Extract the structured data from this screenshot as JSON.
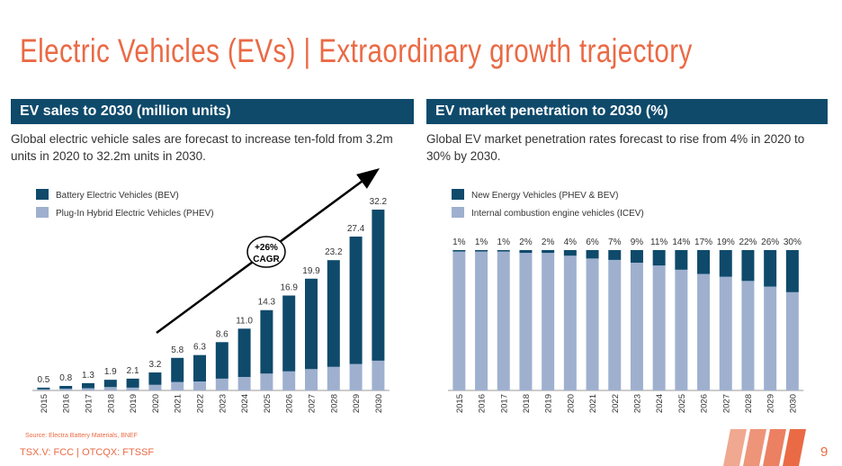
{
  "page": {
    "title": "Electric Vehicles (EVs) | Extraordinary growth trajectory",
    "source": "Source: Electra Battery Materials, BNEF",
    "ticker": "TSX.V: FCC | OTCQX: FTSSF",
    "page_number": "9"
  },
  "left_panel": {
    "header": "EV sales to 2030 (million units)",
    "description": "Global electric vehicle sales are forecast to increase ten-fold from 3.2m units in 2020 to 32.2m units in 2030.",
    "cagr_line1": "+26%",
    "cagr_line2": "CAGR"
  },
  "right_panel": {
    "header": "EV market penetration to 2030 (%)",
    "description": "Global EV market penetration rates forecast to rise from 4% in 2020 to 30% by 2030."
  },
  "colors": {
    "dark": "#0f4a6b",
    "light": "#9fb0cf",
    "accent": "#ea6a45"
  },
  "chart_data": [
    {
      "type": "bar",
      "stacked": true,
      "categories": [
        "2015",
        "2016",
        "2017",
        "2018",
        "2019",
        "2020",
        "2021",
        "2022",
        "2023",
        "2024",
        "2025",
        "2026",
        "2027",
        "2028",
        "2029",
        "2030"
      ],
      "series": [
        {
          "name": "Battery Electric Vehicles (BEV)",
          "values": [
            0.3,
            0.5,
            0.9,
            1.3,
            1.6,
            2.2,
            4.3,
            4.7,
            6.5,
            8.6,
            11.3,
            13.5,
            16.1,
            19.0,
            22.7,
            26.9
          ]
        },
        {
          "name": "Plug-In Hybrid Electric Vehicles (PHEV)",
          "values": [
            0.2,
            0.3,
            0.4,
            0.6,
            0.5,
            1.0,
            1.5,
            1.6,
            2.1,
            2.4,
            3.0,
            3.4,
            3.8,
            4.2,
            4.7,
            5.3
          ]
        }
      ],
      "totals": [
        "0.5",
        "0.8",
        "1.3",
        "1.9",
        "2.1",
        "3.2",
        "5.8",
        "6.3",
        "8.6",
        "11.0",
        "14.3",
        "16.9",
        "19.9",
        "23.2",
        "27.4",
        "32.2"
      ],
      "ylim": [
        0,
        32.2
      ],
      "legend": "top-left"
    },
    {
      "type": "bar",
      "stacked": true,
      "categories": [
        "2015",
        "2016",
        "2017",
        "2018",
        "2019",
        "2020",
        "2021",
        "2022",
        "2023",
        "2024",
        "2025",
        "2026",
        "2027",
        "2028",
        "2029",
        "2030"
      ],
      "series": [
        {
          "name": "New Energy Vehicles (PHEV & BEV)",
          "values": [
            1,
            1,
            1,
            2,
            2,
            4,
            6,
            7,
            9,
            11,
            14,
            17,
            19,
            22,
            26,
            30
          ]
        },
        {
          "name": "Internal combustion engine vehicles (ICEV)",
          "values": [
            99,
            99,
            99,
            98,
            98,
            96,
            94,
            93,
            91,
            89,
            86,
            83,
            81,
            78,
            74,
            70
          ]
        }
      ],
      "labels": [
        "1%",
        "1%",
        "1%",
        "2%",
        "2%",
        "4%",
        "6%",
        "7%",
        "9%",
        "11%",
        "14%",
        "17%",
        "19%",
        "22%",
        "26%",
        "30%"
      ],
      "ylim": [
        0,
        100
      ],
      "legend": "top-left"
    }
  ]
}
